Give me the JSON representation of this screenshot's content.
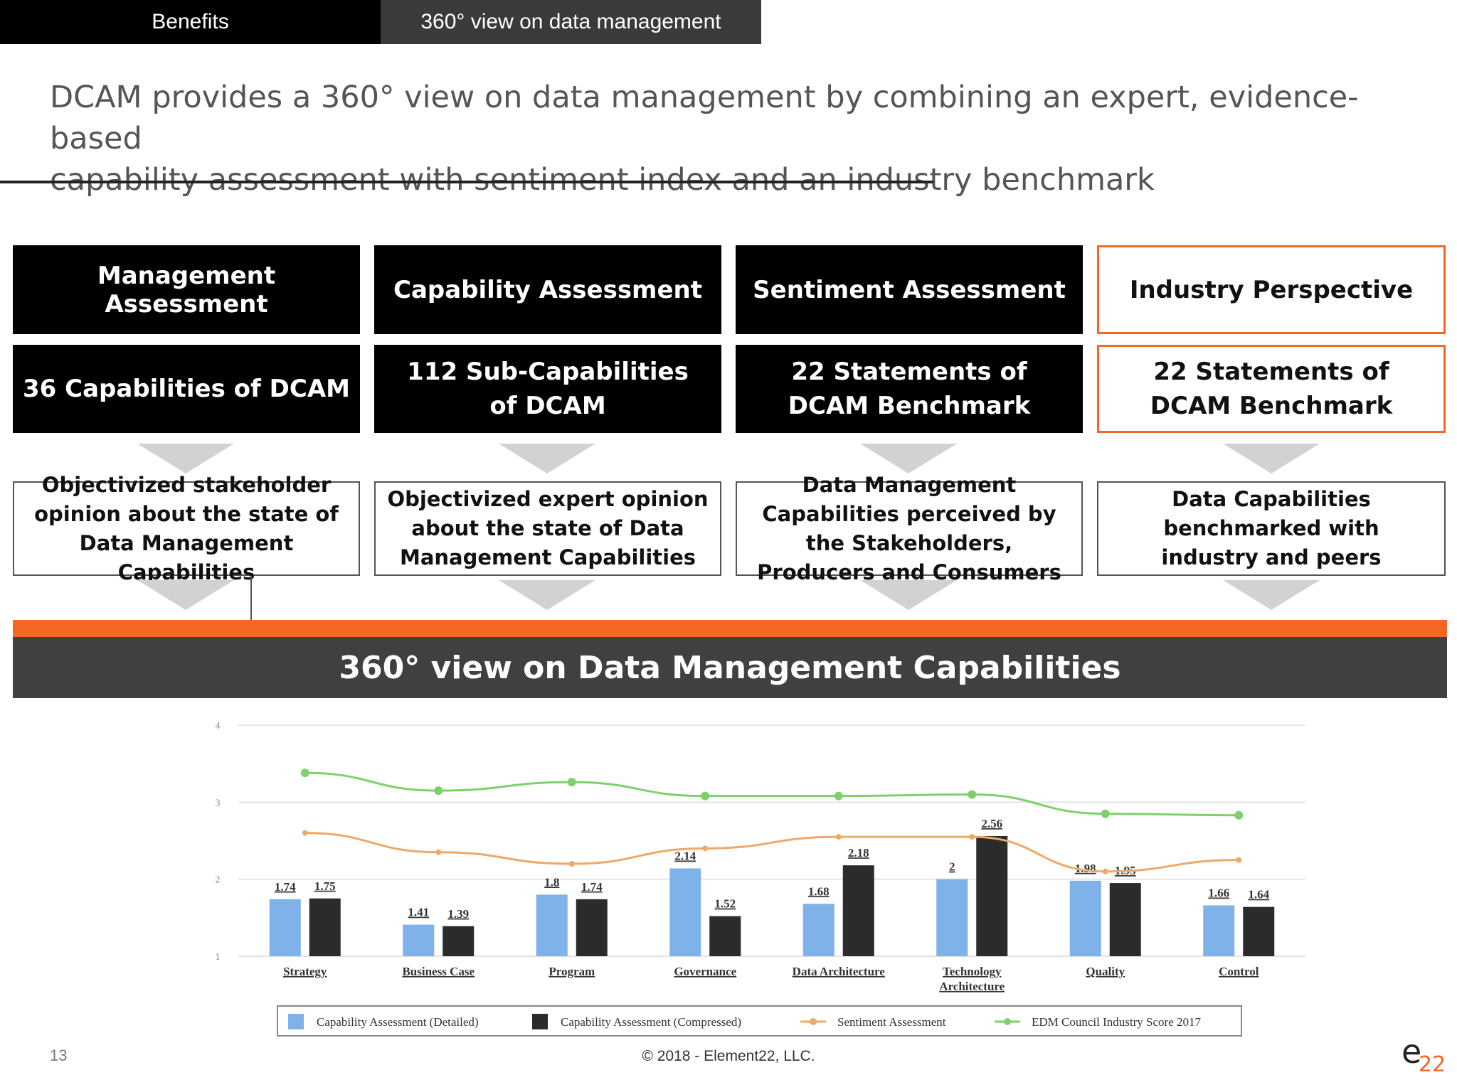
{
  "tabs": [
    {
      "label": "Benefits"
    },
    {
      "label": "360° view on data management"
    }
  ],
  "headline": {
    "line1": "DCAM provides a 360° view on data management by combining an expert, evidence-based",
    "line2": "capability assessment with sentiment index and an industry benchmark"
  },
  "columns": [
    {
      "title": "Management Assessment",
      "subtitle": "36 Capabilities of DCAM",
      "desc": "Objectivized stakeholder opinion about the state of Data Management Capabilities"
    },
    {
      "title": "Capability Assessment",
      "subtitle": "112 Sub-Capabilities of DCAM",
      "desc": "Objectivized expert opinion about the state of Data Management Capabilities"
    },
    {
      "title": "Sentiment Assessment",
      "subtitle": "22 Statements of DCAM Benchmark",
      "desc": "Data Management Capabilities perceived by the Stakeholders, Producers and Consumers"
    },
    {
      "title": "Industry Perspective",
      "subtitle": "22 Statements of DCAM Benchmark",
      "desc": "Data Capabilities benchmarked with industry and peers"
    }
  ],
  "banner": {
    "label": "360° view on Data Management Capabilities"
  },
  "colors": {
    "accent": "#f26722",
    "detailed": "#7fb2e8",
    "compressed": "#2b2b2b",
    "sentiment": "#f0a869",
    "industry": "#7ed16a"
  },
  "chart_data": {
    "type": "bar",
    "categories": [
      "Strategy",
      "Business Case",
      "Program",
      "Governance",
      "Data Architecture",
      "Technology Architecture",
      "Quality",
      "Control"
    ],
    "ylim": [
      1,
      4
    ],
    "yticks": [
      "1",
      "2",
      "3",
      "4"
    ],
    "grid": true,
    "legend_position": "bottom",
    "series": [
      {
        "name": "Capability Assessment (Detailed)",
        "kind": "bar",
        "values": [
          1.74,
          1.41,
          1.8,
          2.14,
          1.68,
          2,
          1.98,
          1.66
        ],
        "labels": [
          "1.74",
          "1.41",
          "1.8",
          "2.14",
          "1.68",
          "2",
          "1.98",
          "1.66"
        ]
      },
      {
        "name": "Capability Assessment (Compressed)",
        "kind": "bar",
        "values": [
          1.75,
          1.39,
          1.74,
          1.52,
          2.18,
          2.56,
          1.95,
          1.64
        ],
        "labels": [
          "1.75",
          "1.39",
          "1.74",
          "1.52",
          "2.18",
          "2.56",
          "1.95",
          "1.64"
        ]
      },
      {
        "name": "Sentiment Assessment",
        "kind": "line",
        "values": [
          2.6,
          2.35,
          2.2,
          2.4,
          2.55,
          2.55,
          2.1,
          2.25
        ]
      },
      {
        "name": "EDM Council Industry Score 2017",
        "kind": "line",
        "values": [
          3.38,
          3.15,
          3.26,
          3.08,
          3.08,
          3.1,
          2.85,
          2.83
        ]
      }
    ]
  },
  "footer": {
    "page": "13",
    "copyright": "© 2018 - Element22, LLC.",
    "logo_main": "e",
    "logo_sub": "22"
  }
}
